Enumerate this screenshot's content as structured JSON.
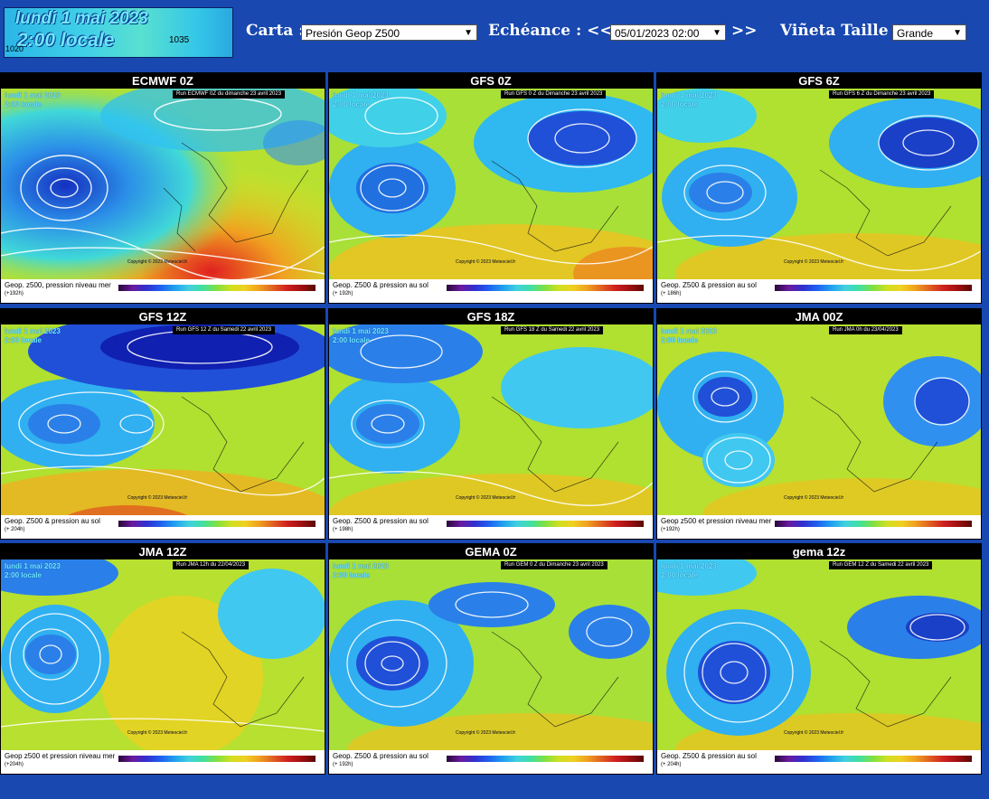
{
  "header": {
    "thumbnail": {
      "line1": "lundi 1 mai 2023",
      "line2": "2:00 locale",
      "pressure_right": "1035",
      "pressure_left": "1020"
    },
    "carta_label": "Carta :",
    "carta_value": "Presión Geop Z500",
    "echeance_label": "Echéance : <<",
    "echeance_value": "05/01/2023 02:00",
    "echeance_next": ">>",
    "vineta_label": "Viñeta Taille :",
    "vineta_value": "Grande"
  },
  "colors": {
    "background": "#1848b0",
    "header_text": "#ffffff"
  },
  "panels": [
    {
      "title": "ECMWF 0Z",
      "run": "Run ECMWF 0Z du dimanche 23 avril 2023",
      "date": "lundi 1 mai 2023",
      "time": "2:00 locale",
      "caption": "Geop. z500, pression niveau mer",
      "sub": "(+192h)",
      "copyright": "Copyright © 2023 Meteociel.fr"
    },
    {
      "title": "GFS 0Z",
      "run": "Run GFS 0 Z du Dimanche 23 avril 2023",
      "date": "lundi 1 mai 2023",
      "time": "2:00 locale",
      "caption": "Geop. Z500 & pression au sol",
      "sub": "(+ 192h)",
      "copyright": "Copyright © 2023 Meteociel.fr"
    },
    {
      "title": "GFS 6Z",
      "run": "Run GFS 6 Z du Dimanche 23 avril 2023",
      "date": "lundi 1 mai 2023",
      "time": "2:00 locale",
      "caption": "Geop. Z500 & pression au sol",
      "sub": "(+ 186h)",
      "copyright": "Copyright © 2023 Meteociel.fr"
    },
    {
      "title": "GFS 12Z",
      "run": "Run GFS 12 Z du Samedi 22 avril 2023",
      "date": "lundi 1 mai 2023",
      "time": "2:00 locale",
      "caption": "Geop. Z500 & pression au sol",
      "sub": "(+ 204h)",
      "copyright": "Copyright © 2023 Meteociel.fr"
    },
    {
      "title": "GFS 18Z",
      "run": "Run GFS 18 Z du Samedi 22 avril 2023",
      "date": "lundi 1 mai 2023",
      "time": "2:00 locale",
      "caption": "Geop. Z500 & pression au sol",
      "sub": "(+ 198h)",
      "copyright": "Copyright © 2023 Meteociel.fr"
    },
    {
      "title": "JMA 00Z",
      "run": "Run JMA 0h du 23/04/2023",
      "date": "lundi 1 mai 2023",
      "time": "2:00 locale",
      "caption": "Geop z500 et pression niveau mer",
      "sub": "(+192h)",
      "copyright": "Copyright © 2023 Meteociel.fr"
    },
    {
      "title": "JMA 12Z",
      "run": "Run JMA 12h du 22/04/2023",
      "date": "lundi 1 mai 2023",
      "time": "2:00 locale",
      "caption": "Geop z500 et pression niveau mer",
      "sub": "(+204h)",
      "copyright": "Copyright © 2023 Meteociel.fr"
    },
    {
      "title": "GEMA 0Z",
      "run": "Run GEM 0 Z du Dimanche 23 avril 2023",
      "date": "lundi 1 mai 2023",
      "time": "2:00 locale",
      "caption": "Geop. Z500 & pression au sol",
      "sub": "(+ 192h)",
      "copyright": "Copyright © 2023 Meteociel.fr"
    },
    {
      "title": "gema 12z",
      "run": "Run GEM 12 Z du Samedi 22 avril 2023",
      "date": "lundi 1 mai 2023",
      "time": "2:00 locale",
      "caption": "Geop. Z500 & pression au sol",
      "sub": "(+ 204h)",
      "copyright": "Copyright © 2023 Meteociel.fr"
    }
  ]
}
